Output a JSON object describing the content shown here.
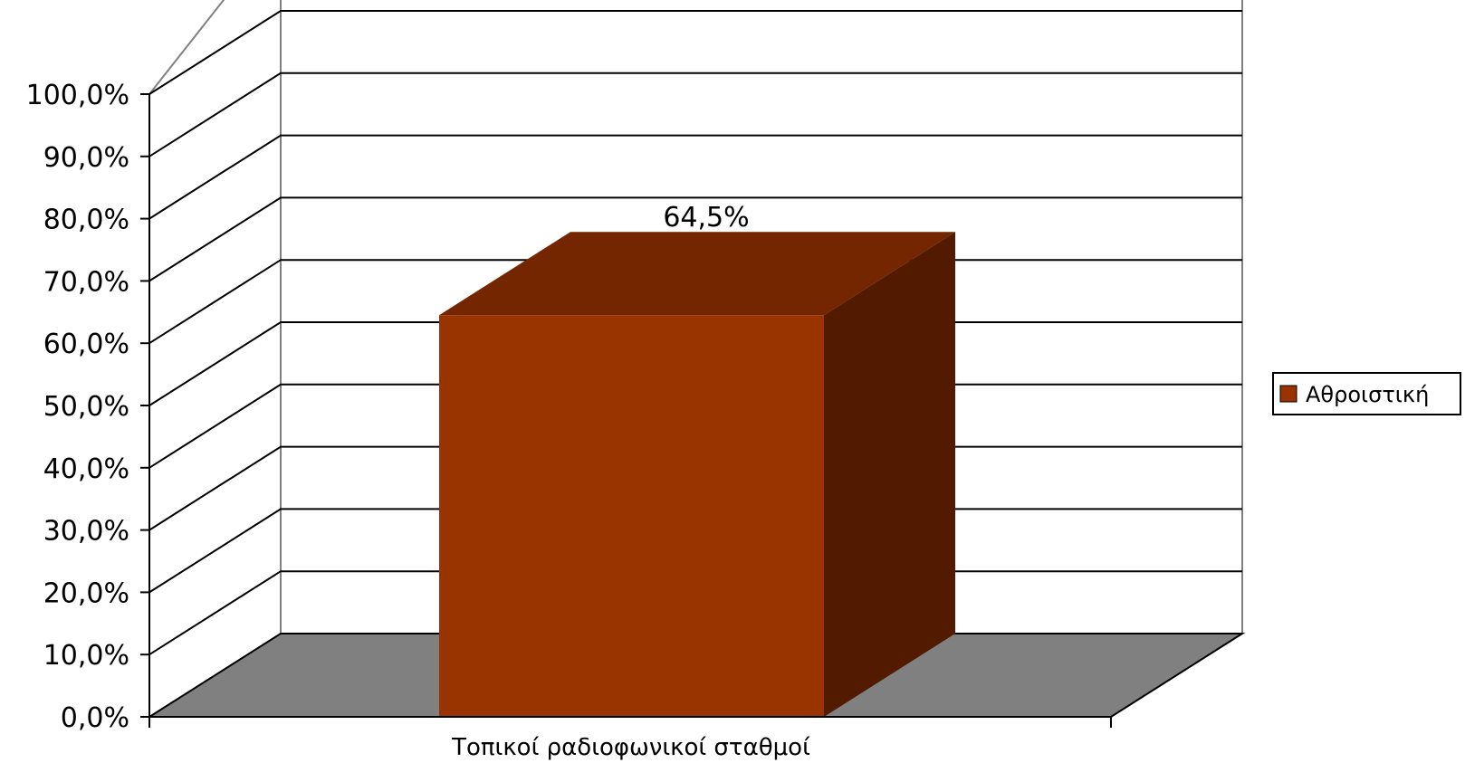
{
  "chart_data": {
    "type": "bar",
    "title": "",
    "xlabel": "",
    "ylabel": "",
    "categories": [
      "Τοπικοί ραδιοφωνικοί σταθμοί"
    ],
    "series": [
      {
        "name": "Αθροιστική",
        "values": [
          64.5
        ],
        "color": "#993300",
        "data_labels": [
          "64,5%"
        ]
      }
    ],
    "ylim": [
      0,
      100
    ],
    "yticks": [
      {
        "value": 0,
        "label": "0,0%"
      },
      {
        "value": 10,
        "label": "10,0%"
      },
      {
        "value": 20,
        "label": "20,0%"
      },
      {
        "value": 30,
        "label": "30,0%"
      },
      {
        "value": 40,
        "label": "40,0%"
      },
      {
        "value": 50,
        "label": "50,0%"
      },
      {
        "value": 60,
        "label": "60,0%"
      },
      {
        "value": 70,
        "label": "70,0%"
      },
      {
        "value": 80,
        "label": "80,0%"
      },
      {
        "value": 90,
        "label": "90,0%"
      },
      {
        "value": 100,
        "label": "100,0%"
      }
    ],
    "grid": true,
    "three_d": true,
    "legend": "right",
    "colors": {
      "floor": "#808080",
      "bar_front": "#993300",
      "bar_top": "#732600",
      "bar_side": "#521b00",
      "grid": "#000000",
      "wall_edge": "#808080"
    }
  }
}
